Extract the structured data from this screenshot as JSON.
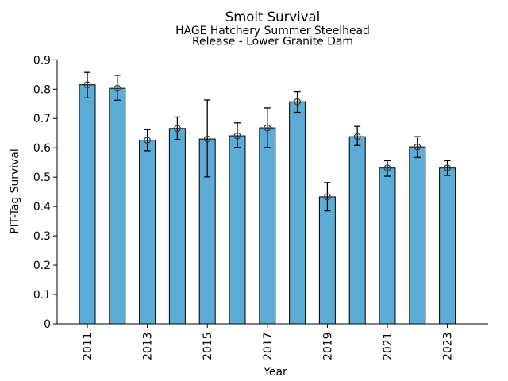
{
  "chart_data": {
    "type": "bar",
    "title": "Smolt Survival",
    "subtitle_lines": [
      "HAGE Hatchery Summer Steelhead",
      "Release - Lower Granite Dam"
    ],
    "xlabel": "Year",
    "ylabel": "PIT-Tag Survival",
    "categories": [
      "2011",
      "2012",
      "2013",
      "2014",
      "2015",
      "2016",
      "2017",
      "2018",
      "2019",
      "2020",
      "2021",
      "2022",
      "2023"
    ],
    "values": [
      0.815,
      0.803,
      0.626,
      0.666,
      0.63,
      0.641,
      0.668,
      0.757,
      0.433,
      0.638,
      0.531,
      0.603,
      0.531
    ],
    "error_low": [
      0.77,
      0.762,
      0.59,
      0.628,
      0.501,
      0.601,
      0.601,
      0.721,
      0.385,
      0.608,
      0.503,
      0.567,
      0.506
    ],
    "error_high": [
      0.857,
      0.847,
      0.662,
      0.705,
      0.763,
      0.685,
      0.736,
      0.791,
      0.482,
      0.673,
      0.556,
      0.638,
      0.556
    ],
    "xtick_labels": [
      "2011",
      "2013",
      "2015",
      "2017",
      "2019",
      "2021",
      "2023"
    ],
    "ytick_values": [
      0,
      0.1,
      0.2,
      0.3,
      0.4,
      0.5,
      0.6,
      0.7,
      0.8,
      0.9
    ],
    "ytick_labels": [
      "0",
      "0.1",
      "0.2",
      "0.3",
      "0.4",
      "0.5",
      "0.6",
      "0.7",
      "0.8",
      "0.9"
    ],
    "ylim": [
      0,
      0.9
    ],
    "grid": false,
    "legend": "none",
    "marker": "open-circle",
    "colors": {
      "bar_fill": "#5BACD6",
      "bar_edge": "#000000",
      "error_bar": "#000000",
      "marker_edge": "#3F3F3F",
      "axis": "#000000"
    }
  }
}
